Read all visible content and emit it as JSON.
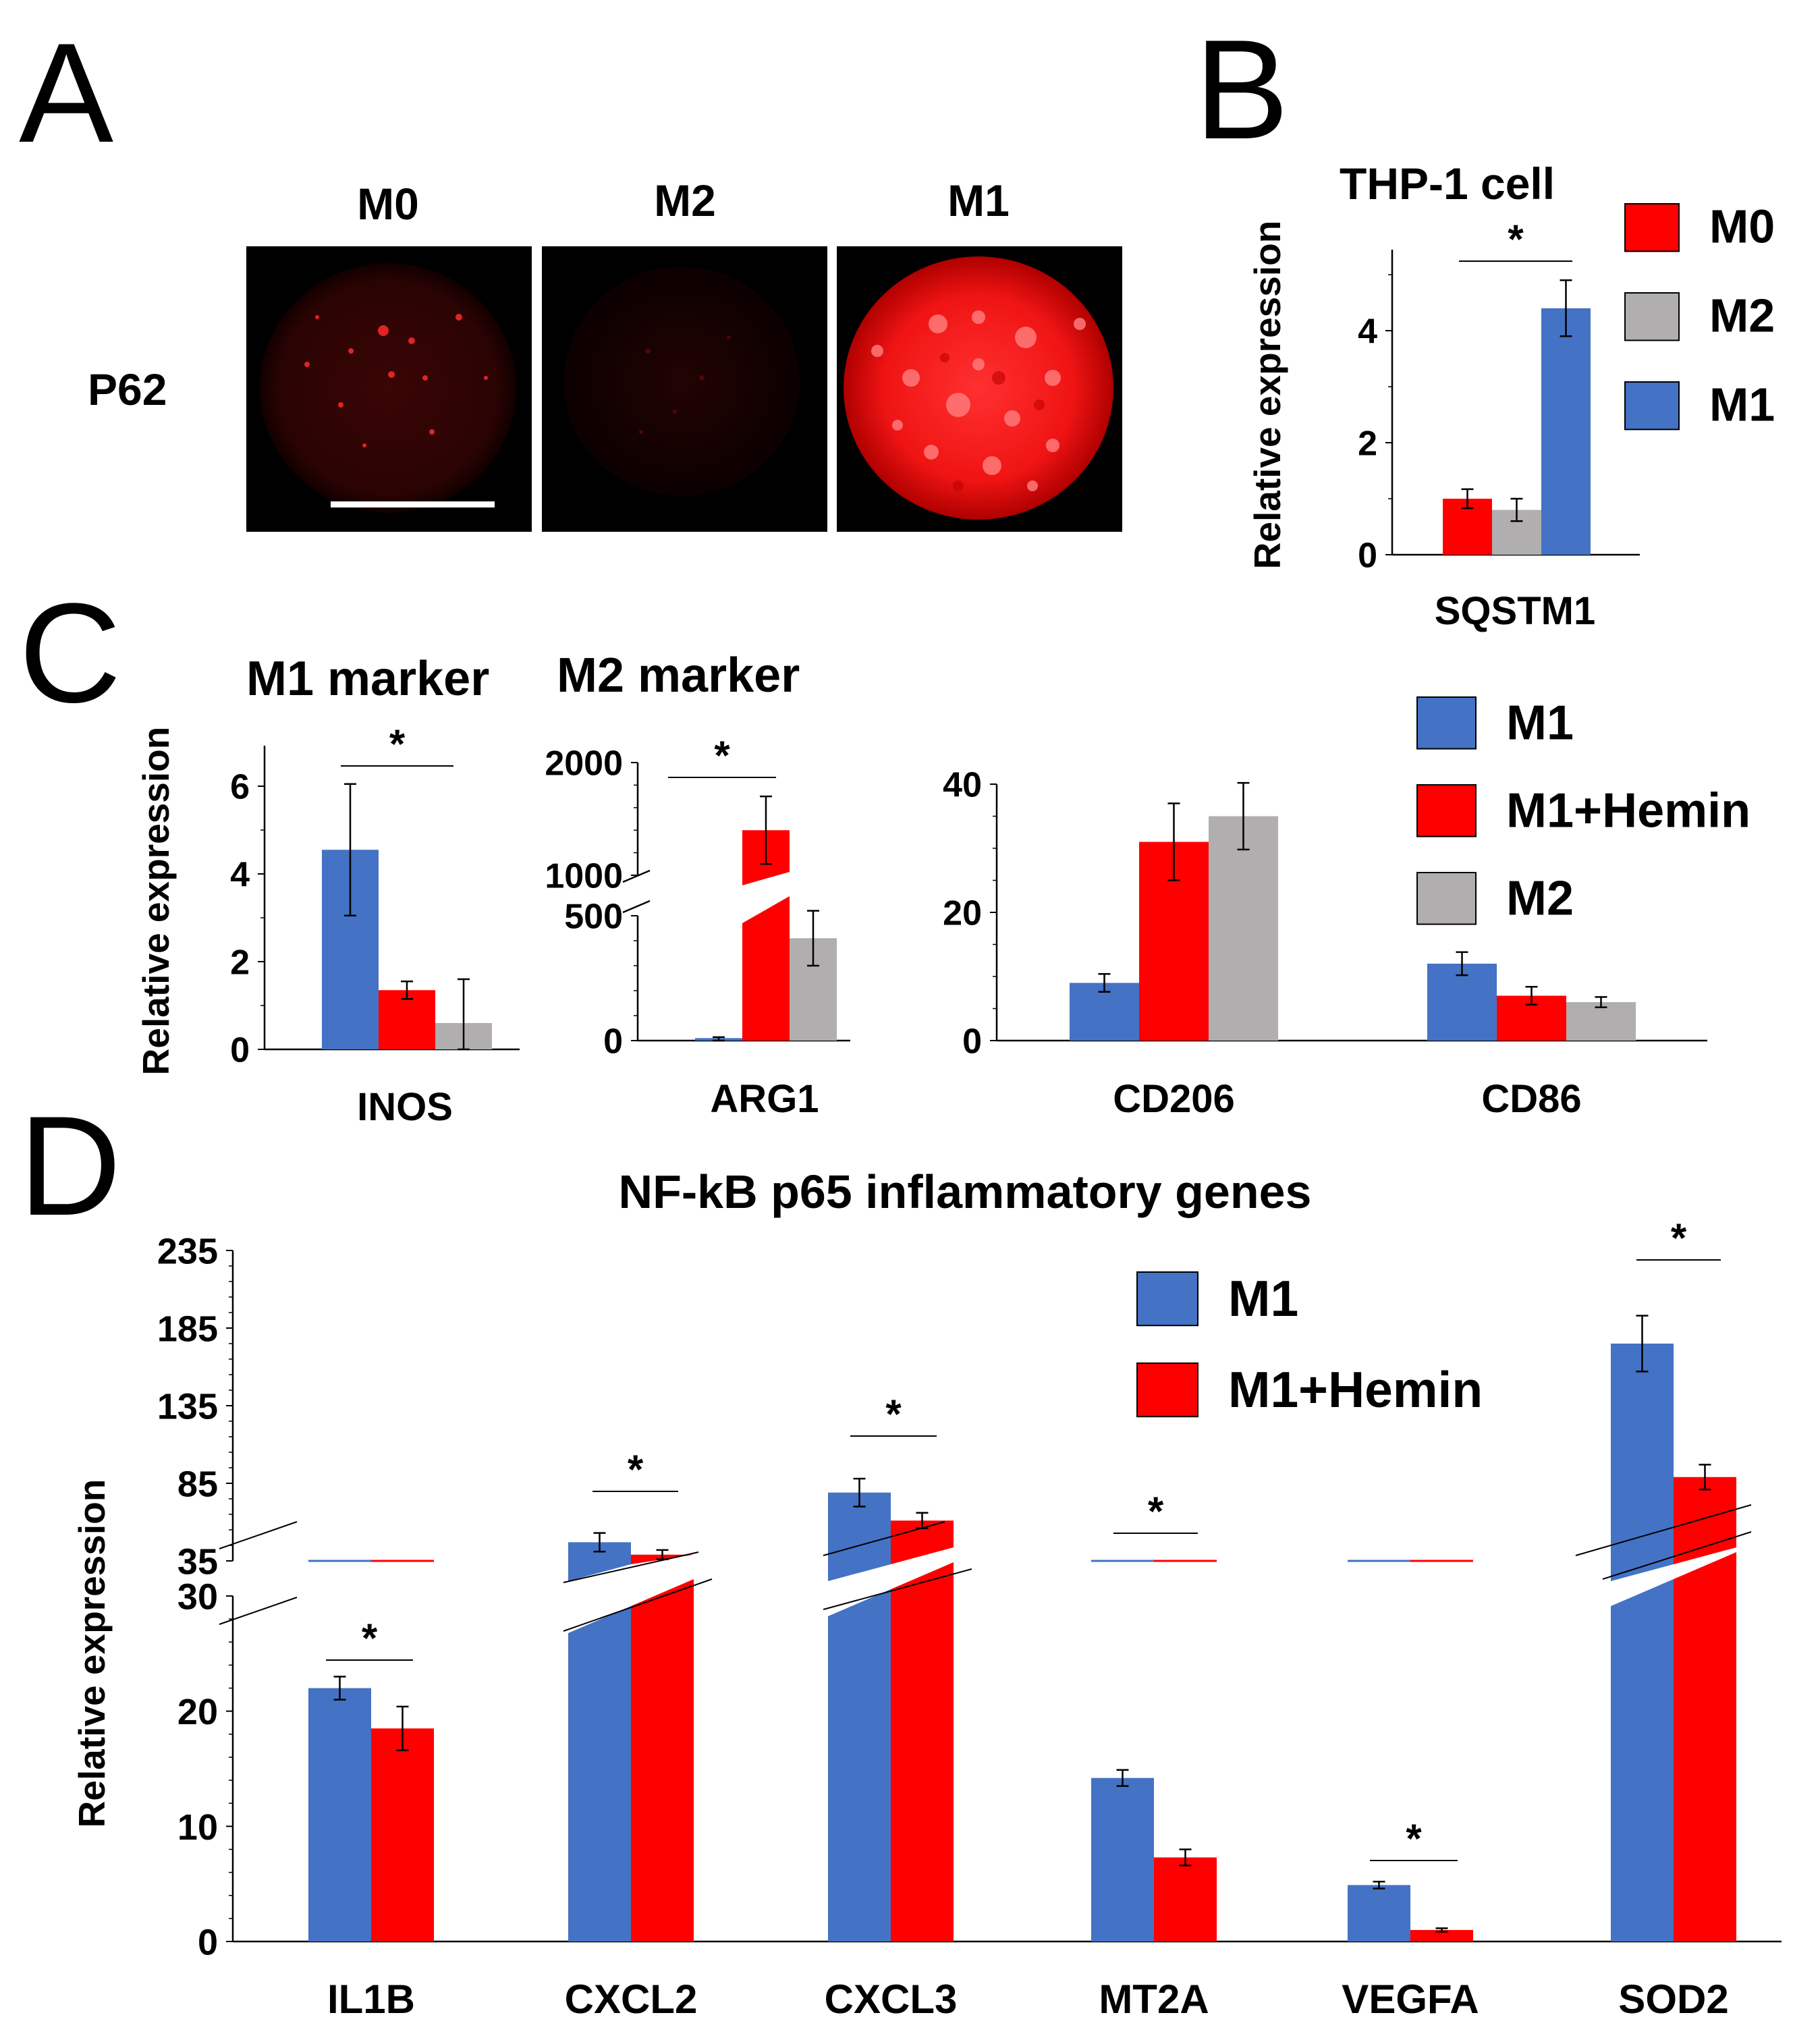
{
  "colors": {
    "m0": "#ff0000",
    "m2": "#b0aeae",
    "m1": "#4472c4",
    "hemin": "#ff0000",
    "axis": "#000000"
  },
  "panels": {
    "A": {
      "letter": "A",
      "row_label": "P62",
      "columns": [
        "M0",
        "M2",
        "M1"
      ],
      "stain_color": "#ff0000",
      "images": [
        {
          "name": "M0",
          "description": "dim red punctate signal",
          "intensity": "low"
        },
        {
          "name": "M2",
          "description": "very faint red signal",
          "intensity": "very-low"
        },
        {
          "name": "M1",
          "description": "bright red cell with puncta",
          "intensity": "high"
        }
      ],
      "scale_bar": true
    },
    "B": {
      "letter": "B"
    },
    "C": {
      "letter": "C"
    },
    "D": {
      "letter": "D"
    }
  },
  "chart_data": [
    {
      "id": "B",
      "type": "bar",
      "title": "THP-1 cell",
      "ylabel": "Relative expression",
      "xlabel": "",
      "categories": [
        "SQSTM1"
      ],
      "series": [
        {
          "name": "M0",
          "color": "#ff0000",
          "values": [
            1.0
          ],
          "errors": [
            0.17
          ]
        },
        {
          "name": "M2",
          "color": "#b0aeae",
          "values": [
            0.8
          ],
          "errors": [
            0.2
          ]
        },
        {
          "name": "M1",
          "color": "#4472c4",
          "values": [
            4.4
          ],
          "errors": [
            0.5
          ]
        }
      ],
      "ylim": [
        0,
        5.5
      ],
      "yticks": [
        0,
        2,
        4
      ],
      "significance": [
        {
          "label": "*",
          "between": [
            "M0",
            "M1"
          ]
        }
      ],
      "legend": [
        "M0",
        "M2",
        "M1"
      ],
      "legend_position": "right"
    },
    {
      "id": "C1",
      "type": "bar",
      "title": "M1 marker",
      "ylabel": "Relative expression",
      "categories": [
        "INOS"
      ],
      "series": [
        {
          "name": "M1",
          "color": "#4472c4",
          "values": [
            4.55
          ],
          "errors": [
            1.5
          ]
        },
        {
          "name": "M1+Hemin",
          "color": "#ff0000",
          "values": [
            1.35
          ],
          "errors": [
            0.2
          ]
        },
        {
          "name": "M2",
          "color": "#b0aeae",
          "values": [
            0.6
          ],
          "errors": [
            1.0
          ]
        }
      ],
      "ylim": [
        0,
        7
      ],
      "yticks": [
        0,
        2,
        4,
        6
      ],
      "significance": [
        {
          "label": "*"
        }
      ]
    },
    {
      "id": "C2",
      "type": "bar",
      "title": "M2 marker",
      "categories": [
        "ARG1"
      ],
      "broken_axis": {
        "lower": [
          0,
          600
        ],
        "upper": [
          900,
          2000
        ]
      },
      "series": [
        {
          "name": "M1",
          "color": "#4472c4",
          "values": [
            10
          ],
          "errors": [
            4
          ]
        },
        {
          "name": "M1+Hemin",
          "color": "#ff0000",
          "values": [
            1400
          ],
          "errors": [
            300
          ]
        },
        {
          "name": "M2",
          "color": "#b0aeae",
          "values": [
            410
          ],
          "errors": [
            110
          ]
        }
      ],
      "ytick_labels": [
        "0",
        "500",
        "1000",
        "2000"
      ],
      "significance": [
        {
          "label": "*"
        }
      ]
    },
    {
      "id": "C3",
      "type": "bar",
      "categories": [
        "CD206",
        "CD86"
      ],
      "series": [
        {
          "name": "M1",
          "color": "#4472c4",
          "values": [
            9,
            12
          ],
          "errors": [
            1.4,
            1.8
          ]
        },
        {
          "name": "M1+Hemin",
          "color": "#ff0000",
          "values": [
            31,
            7
          ],
          "errors": [
            6,
            1.4
          ]
        },
        {
          "name": "M2",
          "color": "#b0aeae",
          "values": [
            35,
            6
          ],
          "errors": [
            5.2,
            0.8
          ]
        }
      ],
      "ylim": [
        0,
        42
      ],
      "yticks": [
        0,
        20,
        40
      ],
      "legend": [
        "M1",
        "M1+Hemin",
        "M2"
      ],
      "legend_position": "top-right"
    },
    {
      "id": "D",
      "type": "bar",
      "title": "NF-kB p65 inflammatory genes",
      "ylabel": "Relative expression",
      "categories": [
        "IL1B",
        "CXCL2",
        "CXCL3",
        "MT2A",
        "VEGFA",
        "SOD2"
      ],
      "broken_axis": {
        "lower": [
          0,
          30
        ],
        "upper": [
          35,
          235
        ]
      },
      "series": [
        {
          "name": "M1",
          "color": "#4472c4",
          "values": [
            22,
            47,
            79,
            14.2,
            4.9,
            175
          ],
          "errors": [
            1.0,
            6,
            9,
            0.7,
            0.3,
            18
          ]
        },
        {
          "name": "M1+Hemin",
          "color": "#ff0000",
          "values": [
            18.5,
            39,
            61,
            7.3,
            1.0,
            89
          ],
          "errors": [
            1.9,
            3,
            5,
            0.7,
            0.15,
            8
          ]
        }
      ],
      "ytick_labels": [
        "0",
        "10",
        "20",
        "30",
        "35",
        "85",
        "135",
        "185",
        "235"
      ],
      "significance": [
        {
          "label": "*",
          "category": "IL1B"
        },
        {
          "label": "*",
          "category": "CXCL2"
        },
        {
          "label": "*",
          "category": "CXCL3"
        },
        {
          "label": "*",
          "category": "MT2A"
        },
        {
          "label": "*",
          "category": "VEGFA"
        },
        {
          "label": "*",
          "category": "SOD2"
        }
      ],
      "legend": [
        "M1",
        "M1+Hemin"
      ],
      "legend_position": "top-right"
    }
  ]
}
